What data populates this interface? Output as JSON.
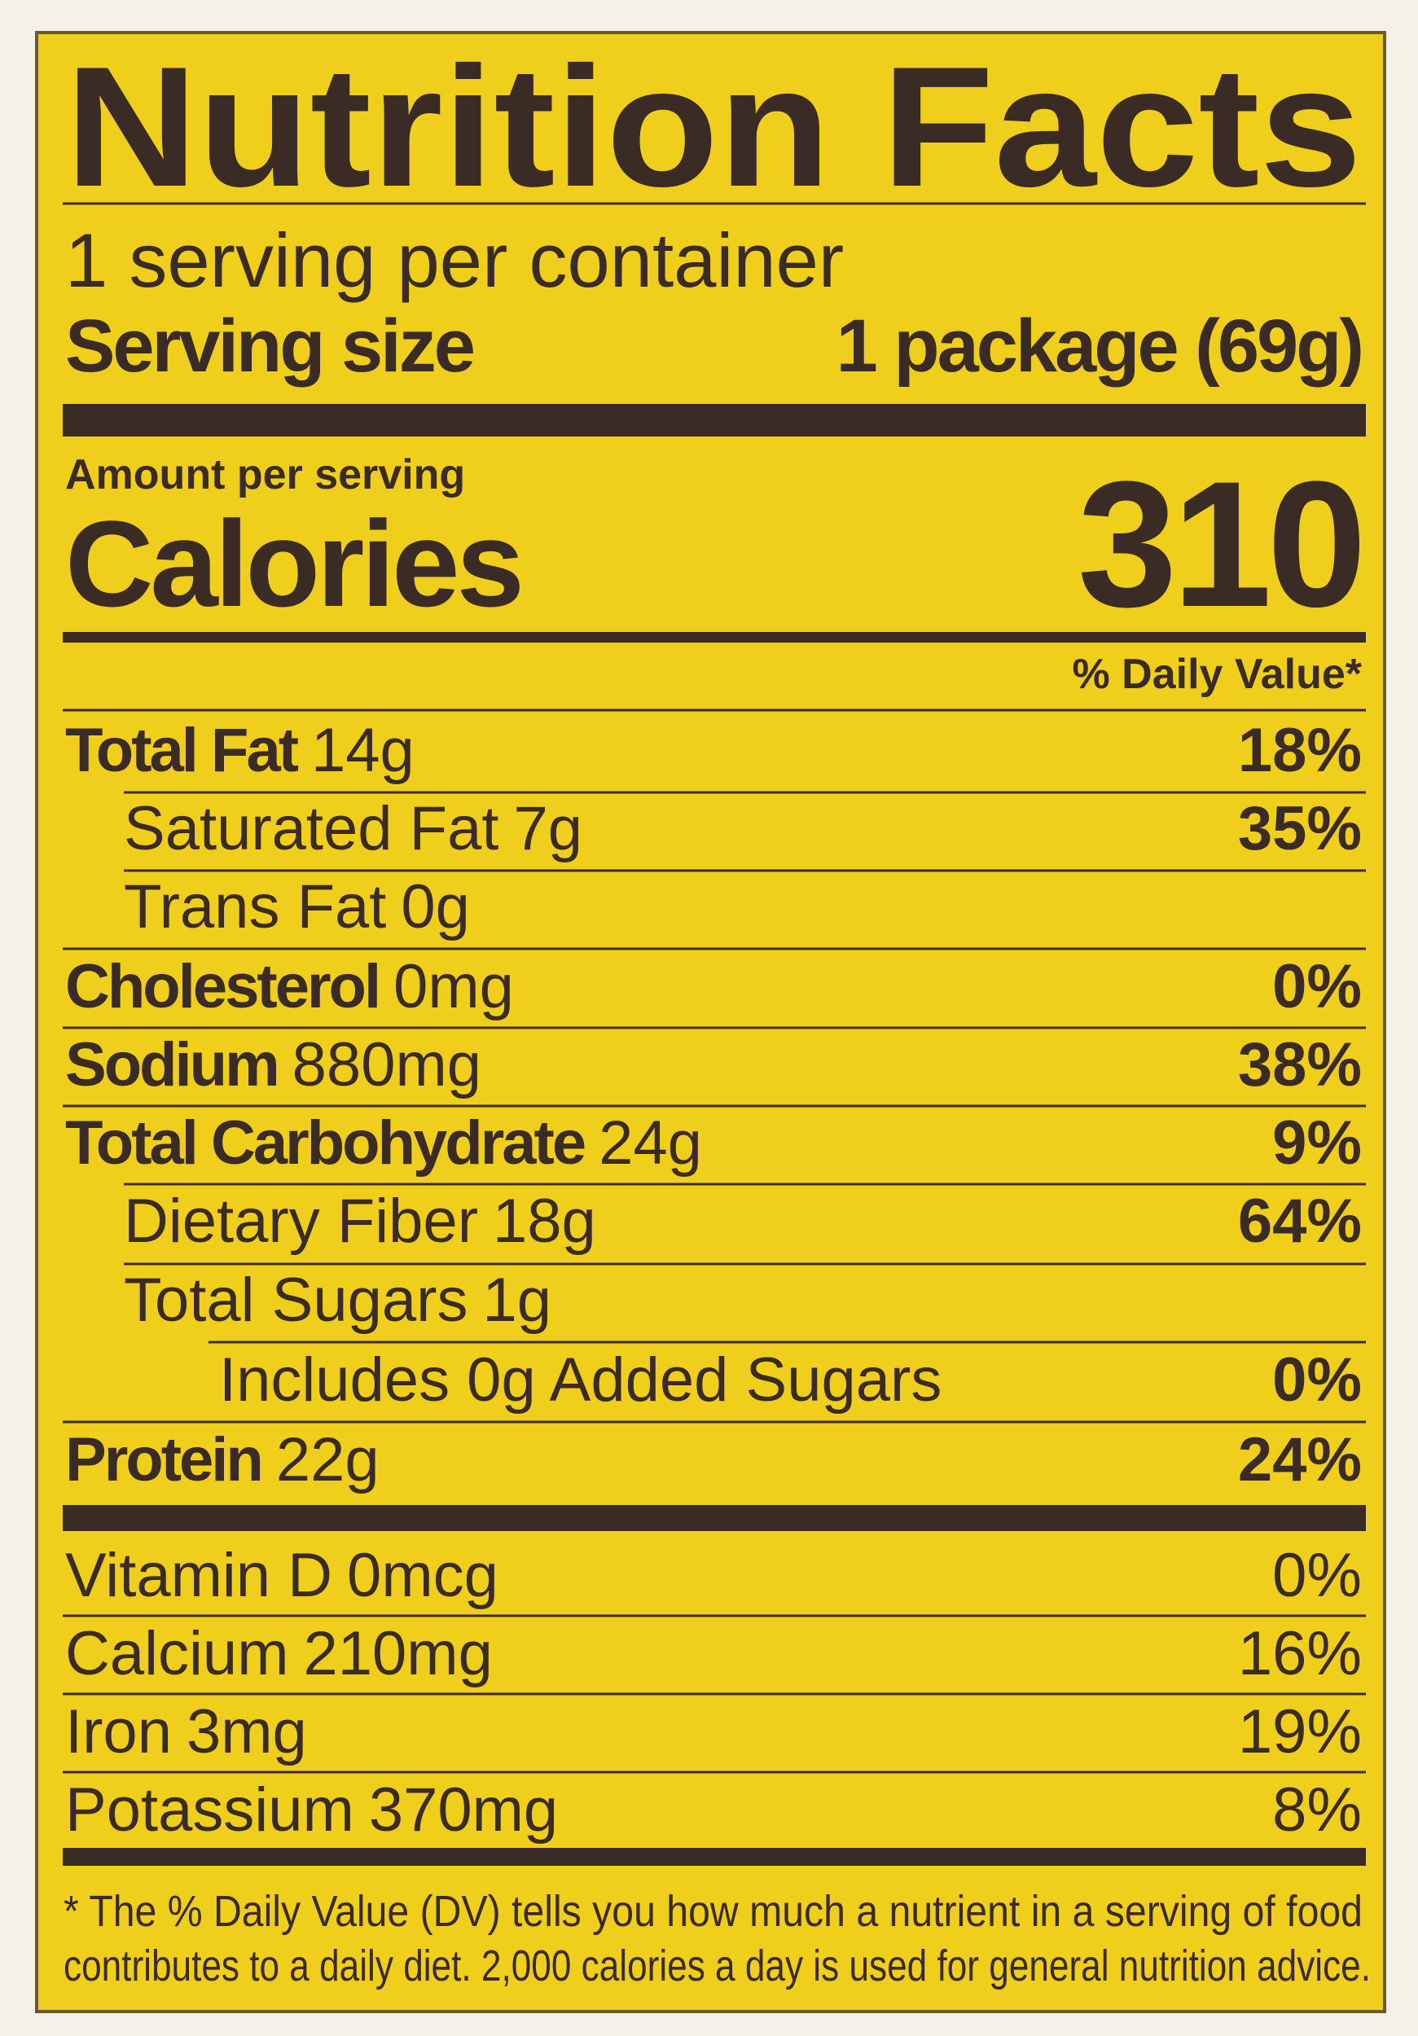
{
  "header": {
    "title": "Nutrition Facts",
    "servings": "1 serving per container",
    "serving_size_label": "Serving size",
    "serving_size_value": "1 package (69g)"
  },
  "calories": {
    "amount_label": "Amount per serving",
    "label": "Calories",
    "value": "310"
  },
  "daily_value_header": "% Daily Value*",
  "nutrients": [
    {
      "name": "Total Fat",
      "amount": "14g",
      "dv": "18%"
    },
    {
      "name": "Saturated Fat",
      "amount": "7g",
      "dv": "35%"
    },
    {
      "name": "Trans Fat",
      "amount": "0g"
    },
    {
      "name": "Cholesterol",
      "amount": "0mg",
      "dv": "0%"
    },
    {
      "name": "Sodium",
      "amount": "880mg",
      "dv": "38%"
    },
    {
      "name": "Total Carbohydrate",
      "amount": "24g",
      "dv": "9%"
    },
    {
      "name": "Dietary Fiber",
      "amount": "18g",
      "dv": "64%"
    },
    {
      "name": "Total Sugars",
      "amount": "1g"
    },
    {
      "name": "Includes 0g Added Sugars",
      "dv": "0%"
    },
    {
      "name": "Protein",
      "amount": "22g",
      "dv": "24%"
    }
  ],
  "vitamins": [
    {
      "name": "Vitamin D",
      "amount": "0mcg",
      "dv": "0%"
    },
    {
      "name": "Calcium",
      "amount": "210mg",
      "dv": "16%"
    },
    {
      "name": "Iron",
      "amount": "3mg",
      "dv": "19%"
    },
    {
      "name": "Potassium",
      "amount": "370mg",
      "dv": "8%"
    }
  ],
  "footnote": [
    "* The % Daily Value (DV) tells you how much a nutrient in a serving of food",
    "contributes to a daily diet. 2,000 calories a day is used for general nutrition advice."
  ]
}
